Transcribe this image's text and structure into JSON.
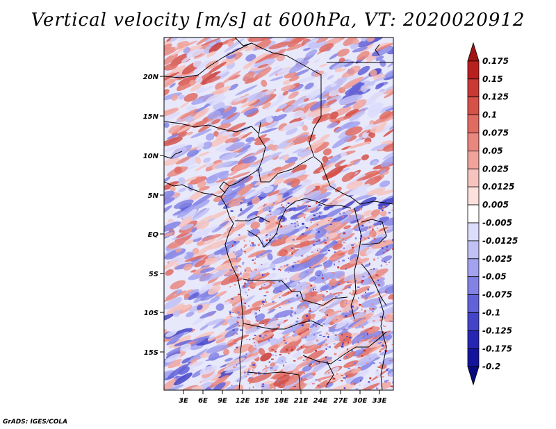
{
  "title": "Vertical velocity [m/s] at 600hPa, VT: 2020020912",
  "credit": "GrADS: IGES/COLA",
  "map": {
    "lat_labels": [
      "20N",
      "15N",
      "10N",
      "5N",
      "EQ",
      "5S",
      "10S",
      "15S"
    ],
    "lon_labels": [
      "3E",
      "6E",
      "9E",
      "12E",
      "15E",
      "18E",
      "21E",
      "24E",
      "27E",
      "30E",
      "33E"
    ]
  },
  "colorbar": {
    "labels": [
      "0.175",
      "0.15",
      "0.125",
      "0.1",
      "0.075",
      "0.05",
      "0.025",
      "0.0125",
      "0.005",
      "-0.005",
      "-0.0125",
      "-0.025",
      "-0.05",
      "-0.075",
      "-0.1",
      "-0.125",
      "-0.175",
      "-0.2"
    ],
    "colors": [
      "#a11414",
      "#b8201f",
      "#c93a34",
      "#d65249",
      "#df6b63",
      "#e8877f",
      "#f0a39c",
      "#f6c4bf",
      "#fbe0dd",
      "#ffffff",
      "#dcdcfb",
      "#c1c1f6",
      "#a2a2ee",
      "#8282e4",
      "#6262d8",
      "#4444c8",
      "#2626b2",
      "#13139c",
      "#0a0a80"
    ]
  },
  "colors": {
    "positive": "#e86a6a",
    "negative": "#7b7be8",
    "border": "#000000"
  }
}
